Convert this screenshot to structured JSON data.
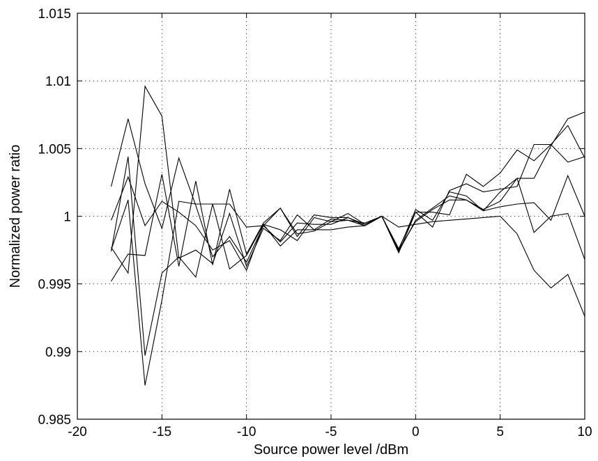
{
  "chart_data": {
    "type": "line",
    "title": "",
    "xlabel": "Source power level /dBm",
    "ylabel": "Normalized power ratio",
    "xlim": [
      -20,
      10
    ],
    "ylim": [
      0.985,
      1.015
    ],
    "grid": true,
    "legend": "none",
    "x_ticks": [
      -20,
      -15,
      -10,
      -5,
      0,
      5,
      10
    ],
    "x_tick_labels": [
      "-20",
      "-15",
      "-10",
      "-5",
      "0",
      "5",
      "10"
    ],
    "y_ticks": [
      0.985,
      0.99,
      0.995,
      1.0,
      1.005,
      1.01,
      1.015
    ],
    "y_tick_labels": [
      "0.985",
      "0.99",
      "0.995",
      "1",
      "1.005",
      "1.01",
      "1.015"
    ],
    "x": [
      -18,
      -17,
      -16,
      -15,
      -14,
      -13,
      -12,
      -11,
      -10,
      -9,
      -8,
      -7,
      -6,
      -5,
      -4,
      -3,
      -2,
      -1,
      0,
      1,
      2,
      3,
      4,
      5,
      6,
      7,
      8,
      9,
      10
    ],
    "series": [
      {
        "values": [
          1.0022,
          1.0072,
          1.0024,
          0.9991,
          1.0043,
          1.0008,
          0.997,
          0.9985,
          0.9966,
          0.9993,
          0.9981,
          0.9995,
          0.9994,
          0.9994,
          0.9999,
          0.9993,
          1.0,
          0.9975,
          1.0005,
          0.9997,
          1.0018,
          1.0015,
          1.0004,
          1.0018,
          1.0028,
          0.9988,
          1.0,
          1.0002,
          0.9968
        ]
      },
      {
        "values": [
          0.9997,
          1.0029,
          0.9993,
          1.0011,
          1.0003,
          0.9993,
          0.9975,
          0.9982,
          0.996,
          0.9994,
          0.9978,
          0.999,
          0.999,
          0.999,
          0.9992,
          0.9993,
          1.0,
          0.9975,
          0.9996,
          1.0005,
          1.0012,
          1.0012,
          1.0004,
          1.0007,
          1.0009,
          1.001,
          0.9997,
          1.003,
          1.0
        ]
      },
      {
        "values": [
          0.9952,
          0.9972,
          0.9971,
          1.0031,
          0.9963,
          1.0026,
          0.9964,
          1.002,
          0.9972,
          0.9995,
          1.0006,
          0.9985,
          1.0001,
          0.9999,
          0.9999,
          0.9994,
          1.0,
          0.9976,
          1.0003,
          0.9992,
          1.0019,
          1.0024,
          1.0018,
          1.002,
          1.0022,
          1.0053,
          1.0053,
          1.004,
          1.0044
        ]
      },
      {
        "values": [
          0.9974,
          1.0044,
          0.9897,
          0.9958,
          0.997,
          0.9955,
          1.0009,
          0.9961,
          0.9971,
          0.9994,
          0.999,
          0.9982,
          0.9999,
          0.9996,
          1.0002,
          0.9994,
          1.0,
          0.9974,
          0.9997,
          1.0006,
          1.0015,
          1.0012,
          1.0005,
          1.0011,
          1.0028,
          1.0028,
          1.0052,
          1.0072,
          1.0077
        ]
      },
      {
        "values": [
          0.9977,
          0.9958,
          1.0096,
          1.0074,
          0.9969,
          0.9975,
          0.9965,
          1.0002,
          0.9963,
          0.9991,
          0.9982,
          1.0001,
          0.999,
          0.9998,
          0.9997,
          0.9993,
          1.0,
          0.9973,
          1.0003,
          1.0003,
          1.0001,
          1.0031,
          1.0022,
          1.0032,
          1.0049,
          1.0041,
          1.0053,
          1.0067,
          1.0043
        ]
      },
      {
        "values": [
          0.9975,
          1.0012,
          0.9875,
          0.9938,
          1.0011,
          1.0009,
          1.0009,
          1.0009,
          0.9992,
          0.9993,
          1.0006,
          0.9987,
          0.9989,
          0.9996,
          0.9997,
          0.9995,
          1.0,
          0.9992,
          0.9994,
          0.9996,
          0.9997,
          0.9998,
          0.9999,
          1.0,
          0.9987,
          0.996,
          0.9947,
          0.9957,
          0.9926
        ]
      }
    ]
  }
}
